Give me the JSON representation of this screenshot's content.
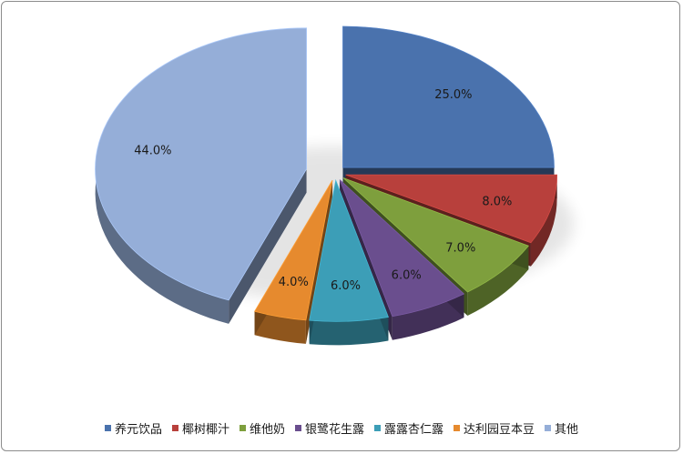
{
  "chart_data": {
    "type": "pie",
    "title": "",
    "categories": [
      "养元饮品",
      "椰树椰汁",
      "维他奶",
      "银鹭花生露",
      "露露杏仁露",
      "达利园豆本豆",
      "其他"
    ],
    "values": [
      25.0,
      8.0,
      7.0,
      6.0,
      6.0,
      4.0,
      44.0
    ],
    "data_labels": [
      "25.0%",
      "8.0%",
      "7.0%",
      "6.0%",
      "6.0%",
      "4.0%",
      "44.0%"
    ],
    "colors": [
      "#4a72ad",
      "#b8403c",
      "#7e9f3d",
      "#6a4e8e",
      "#3c9eb7",
      "#e68a2e",
      "#95aed8"
    ],
    "exploded": true,
    "style": "3d",
    "legend_position": "bottom"
  },
  "legend": {
    "items": [
      {
        "label": "养元饮品",
        "color": "#4a72ad"
      },
      {
        "label": "椰树椰汁",
        "color": "#b8403c"
      },
      {
        "label": "维他奶",
        "color": "#7e9f3d"
      },
      {
        "label": "银鹭花生露",
        "color": "#6a4e8e"
      },
      {
        "label": "露露杏仁露",
        "color": "#3c9eb7"
      },
      {
        "label": "达利园豆本豆",
        "color": "#e68a2e"
      },
      {
        "label": "其他",
        "color": "#95aed8"
      }
    ]
  }
}
